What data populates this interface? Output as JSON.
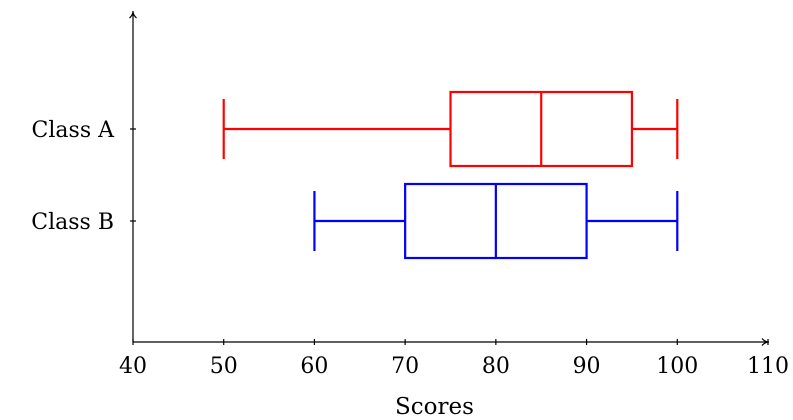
{
  "chart_data": {
    "type": "boxplot",
    "orientation": "horizontal",
    "title": "",
    "xlabel": "Scores",
    "ylabel": "",
    "xlim": [
      40,
      110
    ],
    "x_ticks": [
      40,
      50,
      60,
      70,
      80,
      90,
      100,
      110
    ],
    "grid": false,
    "legend": "none",
    "categories": [
      "Class A",
      "Class B"
    ],
    "series": [
      {
        "category": "Class A",
        "min": 50,
        "q1": 75,
        "median": 85,
        "q3": 95,
        "max": 100,
        "color": "#ff0000"
      },
      {
        "category": "Class B",
        "min": 60,
        "q1": 70,
        "median": 80,
        "q3": 90,
        "max": 100,
        "color": "#0000ff"
      }
    ],
    "axis_color": "#000000"
  }
}
